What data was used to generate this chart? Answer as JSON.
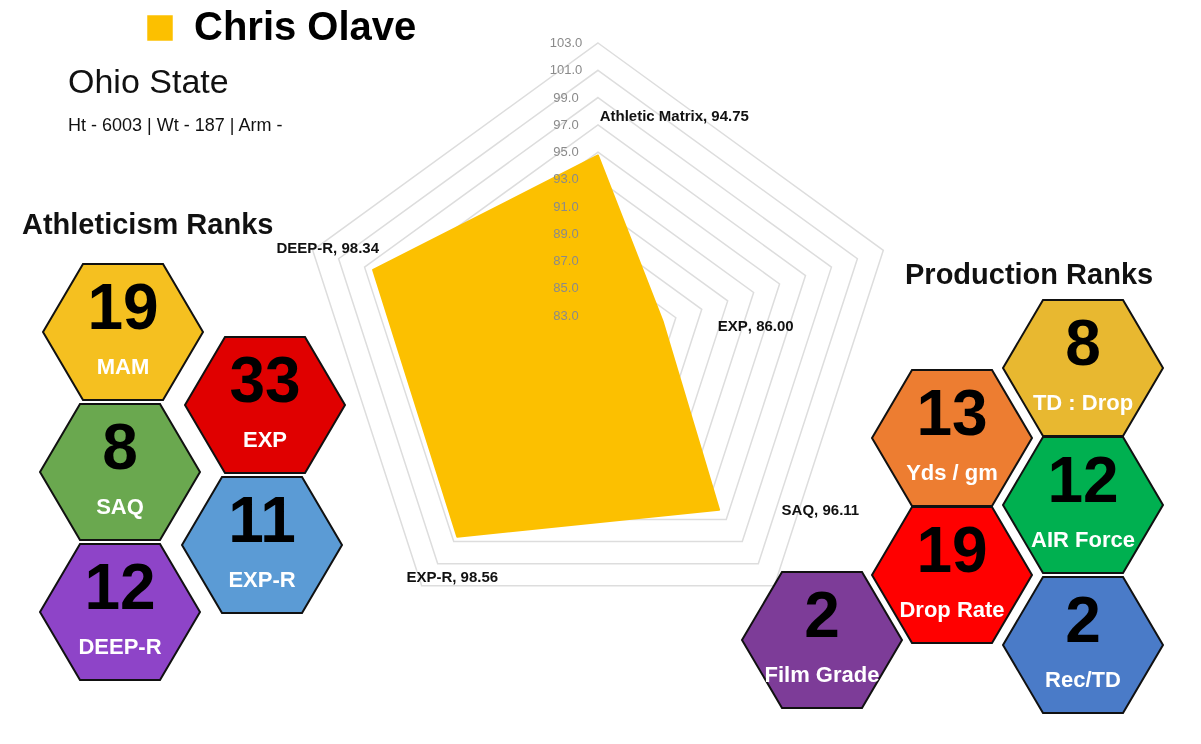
{
  "chart_data": {
    "type": "radar",
    "subtitle": "Ohio State",
    "categories": [
      "Athletic Matrix",
      "EXP",
      "SAQ",
      "EXP-R",
      "DEEP-R"
    ],
    "series": [
      {
        "name": "Chris Olave",
        "color": "#fcc000",
        "values": [
          94.75,
          86,
          96.11,
          98.56,
          98.34
        ]
      }
    ],
    "value_labels": [
      ", 94.75",
      ", 86.00",
      ", 96.11",
      ", 98.56",
      ", 98.34"
    ],
    "ylim": [
      81,
      103
    ],
    "yticks": [
      {
        "value": 83,
        "label": "83.0"
      },
      {
        "value": 85,
        "label": "85.0"
      },
      {
        "value": 87,
        "label": "87.0"
      },
      {
        "value": 89,
        "label": "89.0"
      },
      {
        "value": 91,
        "label": "91.0"
      },
      {
        "value": 93,
        "label": "93.0"
      },
      {
        "value": 95,
        "label": "95.0"
      },
      {
        "value": 97,
        "label": "97.0"
      },
      {
        "value": 99,
        "label": "99.0"
      },
      {
        "value": 101,
        "label": "101.0"
      },
      {
        "value": 103,
        "label": "103.0"
      }
    ],
    "grid": true,
    "legend": "top left",
    "annotations": [
      "Ht - 6003  | Wt - 187 | Arm -",
      "Athleticism Ranks",
      "19",
      "MAM",
      "33",
      "EXP",
      "8",
      "SAQ",
      "11",
      "EXP-R",
      "12",
      "DEEP-R",
      "Production Ranks",
      "8",
      "TD : Drop",
      "13",
      "Yds / gm",
      "12",
      "AIR Force",
      "19",
      "Drop Rate",
      "2",
      "Film Grade",
      "2",
      "Rec/TD"
    ]
  }
}
